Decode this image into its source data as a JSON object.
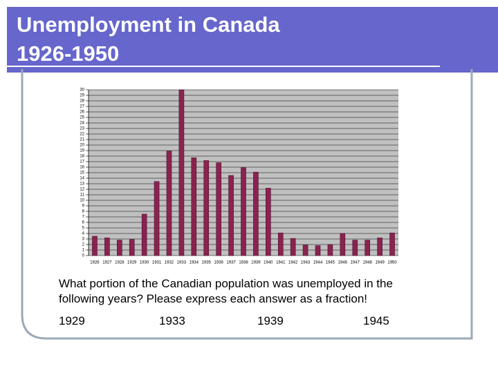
{
  "header": {
    "title": "Unemployment in Canada",
    "subtitle": "1926-1950"
  },
  "question": [
    "What portion of the Canadian population was unemployed in the",
    "following years?  Please express each answer as a fraction!"
  ],
  "answers": [
    "1929",
    "1933",
    "1939",
    "1945"
  ],
  "chart_data": {
    "type": "bar",
    "categories": [
      "1926",
      "1927",
      "1928",
      "1929",
      "1930",
      "1931",
      "1932",
      "1933",
      "1934",
      "1935",
      "1936",
      "1937",
      "1938",
      "1939",
      "1940",
      "1941",
      "1942",
      "1943",
      "1944",
      "1945",
      "1946",
      "1947",
      "1948",
      "1949",
      "1950"
    ],
    "values": [
      3.5,
      3.2,
      2.8,
      2.9,
      7.5,
      13.4,
      18.9,
      30,
      17.7,
      17.2,
      16.8,
      14.5,
      15.9,
      15.1,
      12.2,
      4.1,
      3.1,
      1.9,
      1.8,
      2.0,
      4.0,
      2.8,
      2.8,
      3.2,
      4.1
    ],
    "color": "#8a2350",
    "ylim": [
      0,
      30
    ],
    "yticks": [
      0,
      1,
      2,
      3,
      4,
      5,
      6,
      7,
      8,
      9,
      10,
      11,
      12,
      13,
      14,
      15,
      16,
      17,
      18,
      19,
      20,
      21,
      22,
      23,
      24,
      25,
      26,
      27,
      28,
      29,
      30
    ],
    "grid": true
  }
}
